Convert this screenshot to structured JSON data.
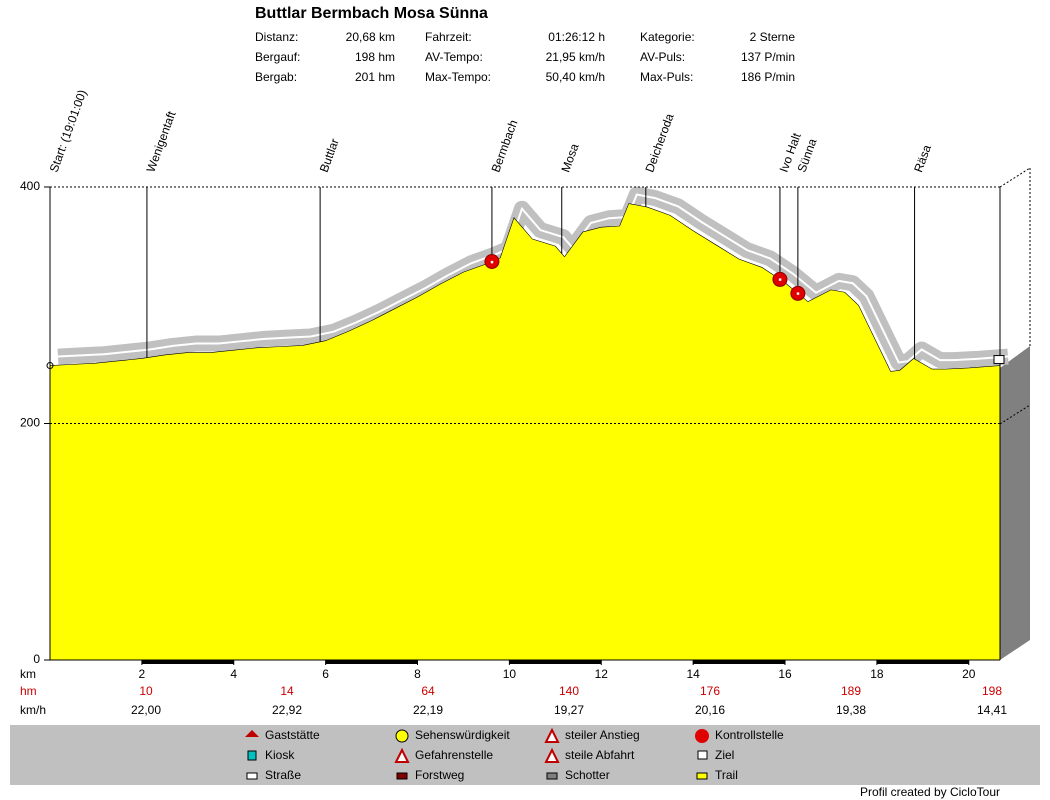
{
  "chart_data": {
    "type": "area",
    "title": "Buttlar Bermbach Mosa Sünna",
    "stats": [
      {
        "label": "Distanz:",
        "value": "20,68 km"
      },
      {
        "label": "Bergauf:",
        "value": "198 hm"
      },
      {
        "label": "Bergab:",
        "value": "201 hm"
      },
      {
        "label": "Fahrzeit:",
        "value": "01:26:12 h"
      },
      {
        "label": "AV-Tempo:",
        "value": "21,95 km/h"
      },
      {
        "label": "Max-Tempo:",
        "value": "50,40 km/h"
      },
      {
        "label": "Kategorie:",
        "value": "2 Sterne"
      },
      {
        "label": "AV-Puls:",
        "value": "137 P/min"
      },
      {
        "label": "Max-Puls:",
        "value": "186 P/min"
      }
    ],
    "x": [
      0,
      0.5,
      1,
      1.5,
      2,
      2.5,
      3,
      3.5,
      4,
      4.5,
      5,
      5.5,
      6,
      6.5,
      7,
      7.5,
      8,
      8.5,
      9,
      9.5,
      9.8,
      10.1,
      10.5,
      11,
      11.2,
      11.6,
      12,
      12.4,
      12.6,
      13,
      13.5,
      14,
      14.5,
      15,
      15.5,
      16,
      16.5,
      17,
      17.3,
      17.6,
      18,
      18.3,
      18.5,
      18.8,
      19.2,
      19.5,
      20,
      20.68
    ],
    "values": [
      249,
      250,
      251,
      253,
      255,
      258,
      260,
      260,
      262,
      264,
      265,
      266,
      270,
      278,
      287,
      297,
      307,
      318,
      328,
      335,
      340,
      374,
      356,
      350,
      341,
      362,
      366,
      367,
      386,
      383,
      376,
      363,
      351,
      339,
      332,
      319,
      303,
      313,
      311,
      300,
      268,
      244,
      245,
      255,
      246,
      246,
      247,
      249
    ],
    "color": "#ffff00",
    "xlim": [
      0,
      20.68
    ],
    "ylim": [
      0,
      400
    ],
    "xticks": [
      2,
      4,
      6,
      8,
      10,
      12,
      14,
      16,
      18,
      20
    ],
    "yticks": [
      0,
      200,
      400
    ],
    "x_label": "km",
    "waypoints": [
      {
        "label": "Start: (19:01:00)",
        "x": 0
      },
      {
        "label": "Wenigentaft",
        "x": 2.11
      },
      {
        "label": "Buttlar",
        "x": 5.88
      },
      {
        "label": "Bermbach",
        "x": 9.62,
        "stop": true
      },
      {
        "label": "Mosa",
        "x": 11.14
      },
      {
        "label": "Deicheroda",
        "x": 12.97
      },
      {
        "label": "Ivo Halt",
        "x": 15.89,
        "stop": true
      },
      {
        "label": "Sünna",
        "x": 16.28,
        "stop": true
      },
      {
        "label": "Räsa",
        "x": 18.82
      }
    ],
    "hm_row": {
      "label": "hm",
      "values": [
        10,
        14,
        64,
        140,
        176,
        189,
        198
      ]
    },
    "speed_row": {
      "label": "km/h",
      "values": [
        "22,00",
        "22,92",
        "22,19",
        "19,27",
        "20,16",
        "19,38",
        "14,41"
      ]
    },
    "legend": [
      "Gaststätte",
      "Sehenswürdigkeit",
      "steiler Anstieg",
      "Kontrollstelle",
      "Kiosk",
      "Gefahrenstelle",
      "steile Abfahrt",
      "Ziel",
      "Straße",
      "Forstweg",
      "Schotter",
      "Trail"
    ],
    "footer": "Profil created by CicloTour"
  }
}
